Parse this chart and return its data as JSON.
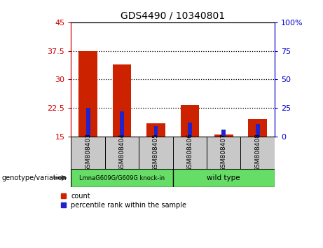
{
  "title": "GDS4490 / 10340801",
  "categories": [
    "GSM808403",
    "GSM808404",
    "GSM808405",
    "GSM808406",
    "GSM808407",
    "GSM808408"
  ],
  "baseline": 15,
  "red_tops": [
    37.5,
    34.0,
    18.5,
    23.2,
    15.5,
    19.5
  ],
  "blue_tops": [
    22.5,
    21.5,
    17.7,
    18.7,
    16.8,
    18.3
  ],
  "ylim_left": [
    15,
    45
  ],
  "ylim_right": [
    0,
    100
  ],
  "yticks_left": [
    15,
    22.5,
    30,
    37.5,
    45
  ],
  "yticks_right": [
    0,
    25,
    50,
    75,
    100
  ],
  "ytick_labels_left": [
    "15",
    "22.5",
    "30",
    "37.5",
    "45"
  ],
  "ytick_labels_right": [
    "0",
    "25",
    "50",
    "75",
    "100%"
  ],
  "left_axis_color": "#cc0000",
  "right_axis_color": "#0000cc",
  "red_bar_width": 0.55,
  "blue_bar_width": 0.12,
  "red_color": "#cc2200",
  "blue_color": "#2222cc",
  "group1_label": "LmnaG609G/G609G knock-in",
  "group2_label": "wild type",
  "group_color": "#66dd66",
  "xlabel_label": "genotype/variation",
  "legend_count": "count",
  "legend_percentile": "percentile rank within the sample",
  "bg_color_sample": "#c8c8c8",
  "dotted_lines": [
    22.5,
    30,
    37.5
  ]
}
